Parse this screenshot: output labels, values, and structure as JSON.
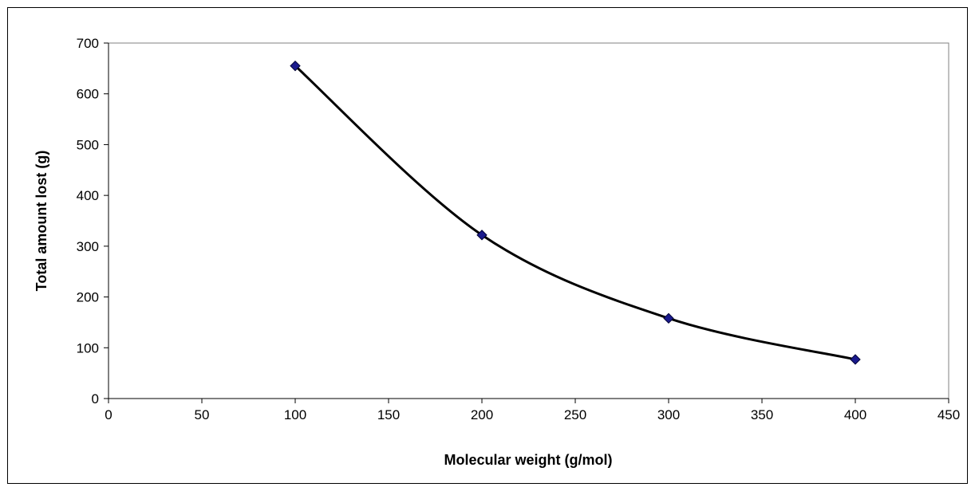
{
  "chart_data": {
    "type": "scatter",
    "title": "",
    "xlabel": "Molecular weight (g/mol)",
    "ylabel": "Total amount lost (g)",
    "xlim": [
      0,
      450
    ],
    "ylim": [
      0,
      700
    ],
    "x_ticks": [
      0,
      50,
      100,
      150,
      200,
      250,
      300,
      350,
      400,
      450
    ],
    "y_ticks": [
      0,
      100,
      200,
      300,
      400,
      500,
      600,
      700
    ],
    "grid": false,
    "legend": "none",
    "series": [
      {
        "x": [
          100,
          200,
          300,
          400
        ],
        "y": [
          655,
          322,
          158,
          77
        ],
        "marker": "diamond",
        "marker_color": "#1a1a8c",
        "line": "smooth",
        "line_color": "#000000"
      }
    ]
  }
}
